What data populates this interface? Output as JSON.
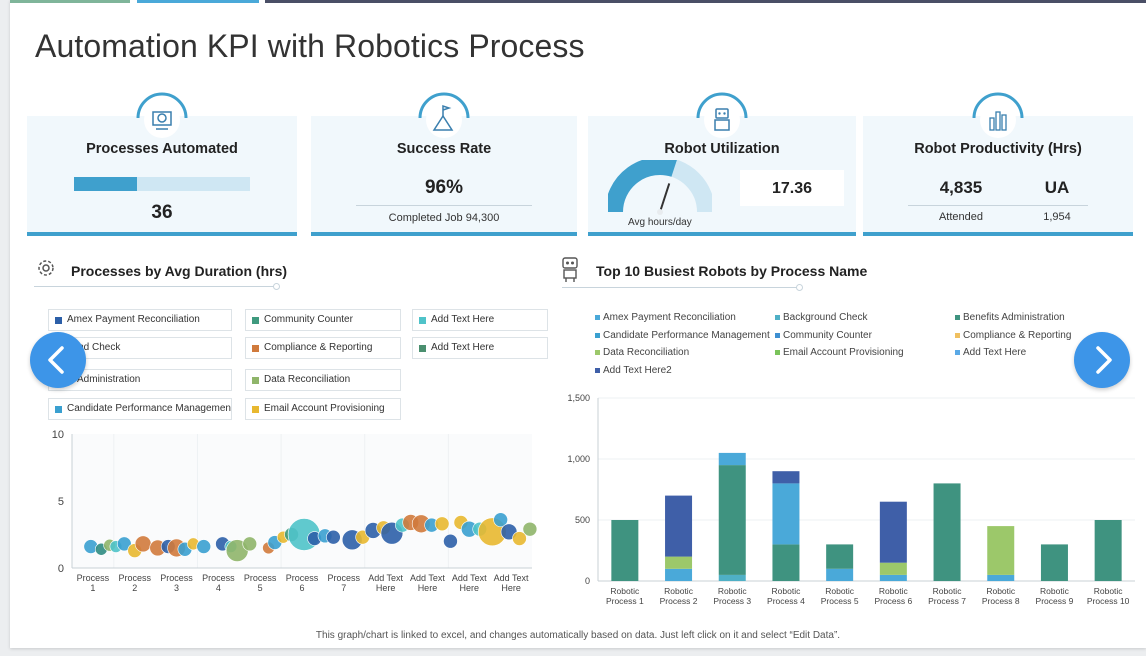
{
  "slide_title": "Automation KPI with Robotics Process",
  "kpis": {
    "processes_automated": {
      "title": "Processes Automated",
      "value": "36",
      "progress": 0.36
    },
    "success_rate": {
      "title": "Success Rate",
      "value": "96%",
      "caption": "Completed Job 94,300"
    },
    "robot_utilization": {
      "title": "Robot Utilization",
      "value": "17.36",
      "gauge_label": "Avg hours/day",
      "gauge_fraction": 0.6
    },
    "robot_productivity": {
      "title": "Robot Productivity (Hrs)",
      "value_left": "4,835",
      "value_right": "UA",
      "label_left": "Attended",
      "label_right": "1,954"
    }
  },
  "left_panel": {
    "title": "Processes by Avg Duration (hrs)",
    "legend": [
      {
        "label": "Amex Payment Reconciliation",
        "color": "#2c5fa8"
      },
      {
        "label": "Community Counter",
        "color": "#3f9a7e"
      },
      {
        "label": "Add Text Here",
        "color": "#4fc3c9"
      },
      {
        "label": "ound Check",
        "color": "#3f9a7e"
      },
      {
        "label": "Compliance & Reporting",
        "color": "#d07a3c"
      },
      {
        "label": "Add Text Here",
        "color": "#4a8f6f"
      },
      {
        "label": "ts Administration",
        "color": "#2f8c82"
      },
      {
        "label": "Data Reconciliation",
        "color": "#8fb56a"
      },
      {
        "label": "Candidate Performance Management",
        "color": "#3aa0d0"
      },
      {
        "label": "Email Account Provisioning",
        "color": "#e8b830"
      }
    ]
  },
  "right_panel": {
    "title": "Top 10 Busiest Robots by Process Name",
    "legend": [
      {
        "label": "Amex Payment Reconciliation",
        "color": "#4aa9d9"
      },
      {
        "label": "Background Check",
        "color": "#4fb0c6"
      },
      {
        "label": "Benefits Administration",
        "color": "#3f9380"
      },
      {
        "label": "Candidate Performance Management",
        "color": "#3aa0d0"
      },
      {
        "label": "Community Counter",
        "color": "#3d8fd1"
      },
      {
        "label": "Compliance & Reporting",
        "color": "#f0c060"
      },
      {
        "label": "Data Reconciliation",
        "color": "#9cc86a"
      },
      {
        "label": "Email Account Provisioning",
        "color": "#7ac35a"
      },
      {
        "label": "Add Text Here",
        "color": "#5aa9e6"
      },
      {
        "label": "Add Text Here2",
        "color": "#3f5fa8"
      }
    ]
  },
  "chart_data": [
    {
      "type": "scatter",
      "ylim": [
        0,
        10
      ],
      "yticks": [
        "0",
        "5",
        "10"
      ],
      "categories": [
        [
          "Process",
          "1"
        ],
        [
          "Process",
          "2"
        ],
        [
          "Process",
          "3"
        ],
        [
          "Process",
          "4"
        ],
        [
          "Process",
          "5"
        ],
        [
          "Process",
          "6"
        ],
        [
          "Process",
          "7"
        ],
        [
          "Add Text",
          "Here"
        ],
        [
          "Add Text",
          "Here"
        ],
        [
          "Add Text",
          "Here"
        ],
        [
          "Add Text",
          "Here"
        ]
      ],
      "points": [
        {
          "x": 0.95,
          "y": 1.6,
          "s": 7,
          "c": "#3aa0d0"
        },
        {
          "x": 1.2,
          "y": 1.4,
          "s": 6,
          "c": "#2f8c82"
        },
        {
          "x": 1.4,
          "y": 1.7,
          "s": 6,
          "c": "#8fb56a"
        },
        {
          "x": 1.55,
          "y": 1.6,
          "s": 6,
          "c": "#4fc3c9"
        },
        {
          "x": 1.75,
          "y": 1.8,
          "s": 7,
          "c": "#3aa0d0"
        },
        {
          "x": 2.0,
          "y": 1.3,
          "s": 7,
          "c": "#e8b830"
        },
        {
          "x": 2.2,
          "y": 1.8,
          "s": 8,
          "c": "#d07a3c"
        },
        {
          "x": 2.55,
          "y": 1.5,
          "s": 8,
          "c": "#d07a3c"
        },
        {
          "x": 2.8,
          "y": 1.6,
          "s": 7,
          "c": "#2c5fa8"
        },
        {
          "x": 3.0,
          "y": 1.5,
          "s": 9,
          "c": "#d07a3c"
        },
        {
          "x": 3.2,
          "y": 1.4,
          "s": 7,
          "c": "#3aa0d0"
        },
        {
          "x": 3.4,
          "y": 1.8,
          "s": 6,
          "c": "#e8b830"
        },
        {
          "x": 3.65,
          "y": 1.6,
          "s": 7,
          "c": "#3aa0d0"
        },
        {
          "x": 4.1,
          "y": 1.8,
          "s": 7,
          "c": "#2c5fa8"
        },
        {
          "x": 4.3,
          "y": 1.6,
          "s": 6,
          "c": "#4fc3c9"
        },
        {
          "x": 4.45,
          "y": 1.3,
          "s": 11,
          "c": "#8fb56a"
        },
        {
          "x": 4.75,
          "y": 1.8,
          "s": 7,
          "c": "#8fb56a"
        },
        {
          "x": 5.2,
          "y": 1.5,
          "s": 6,
          "c": "#d07a3c"
        },
        {
          "x": 5.35,
          "y": 1.9,
          "s": 7,
          "c": "#3aa0d0"
        },
        {
          "x": 5.55,
          "y": 2.3,
          "s": 6,
          "c": "#e8b830"
        },
        {
          "x": 5.75,
          "y": 2.5,
          "s": 7,
          "c": "#3f9a7e"
        },
        {
          "x": 6.05,
          "y": 2.5,
          "s": 16,
          "c": "#4fc3c9"
        },
        {
          "x": 6.3,
          "y": 2.2,
          "s": 7,
          "c": "#2c5fa8"
        },
        {
          "x": 6.55,
          "y": 2.4,
          "s": 7,
          "c": "#3aa0d0"
        },
        {
          "x": 6.75,
          "y": 2.3,
          "s": 7,
          "c": "#2c5fa8"
        },
        {
          "x": 7.2,
          "y": 2.1,
          "s": 10,
          "c": "#2c5fa8"
        },
        {
          "x": 7.45,
          "y": 2.3,
          "s": 7,
          "c": "#e8b830"
        },
        {
          "x": 7.7,
          "y": 2.8,
          "s": 8,
          "c": "#2c5fa8"
        },
        {
          "x": 7.95,
          "y": 3.0,
          "s": 7,
          "c": "#e8b830"
        },
        {
          "x": 8.15,
          "y": 2.6,
          "s": 11,
          "c": "#2c5fa8"
        },
        {
          "x": 8.4,
          "y": 3.2,
          "s": 7,
          "c": "#4fc3c9"
        },
        {
          "x": 8.6,
          "y": 3.4,
          "s": 8,
          "c": "#d07a3c"
        },
        {
          "x": 8.85,
          "y": 3.3,
          "s": 9,
          "c": "#d07a3c"
        },
        {
          "x": 9.1,
          "y": 3.2,
          "s": 7,
          "c": "#3aa0d0"
        },
        {
          "x": 9.35,
          "y": 3.3,
          "s": 7,
          "c": "#e8b830"
        },
        {
          "x": 9.55,
          "y": 2.0,
          "s": 7,
          "c": "#2c5fa8"
        },
        {
          "x": 9.8,
          "y": 3.4,
          "s": 7,
          "c": "#e8b830"
        },
        {
          "x": 10.0,
          "y": 2.9,
          "s": 8,
          "c": "#3aa0d0"
        },
        {
          "x": 10.25,
          "y": 2.9,
          "s": 7,
          "c": "#4fc3c9"
        },
        {
          "x": 10.55,
          "y": 2.7,
          "s": 14,
          "c": "#e8b830"
        },
        {
          "x": 10.75,
          "y": 3.6,
          "s": 7,
          "c": "#3aa0d0"
        },
        {
          "x": 10.95,
          "y": 2.7,
          "s": 8,
          "c": "#2c5fa8"
        },
        {
          "x": 11.2,
          "y": 2.2,
          "s": 7,
          "c": "#e8b830"
        },
        {
          "x": 11.45,
          "y": 2.9,
          "s": 7,
          "c": "#8fb56a"
        }
      ]
    },
    {
      "type": "bar",
      "stacked": true,
      "ylim": [
        0,
        1500
      ],
      "yticks": [
        {
          "value": 0,
          "label": "0"
        },
        {
          "value": 500,
          "label": "500"
        },
        {
          "value": 1000,
          "label": "1,000"
        },
        {
          "value": 1500,
          "label": "1,500"
        }
      ],
      "categories": [
        [
          "Robotic",
          "Process 1"
        ],
        [
          "Robotic",
          "Process 2"
        ],
        [
          "Robotic",
          "Process 3"
        ],
        [
          "Robotic",
          "Process 4"
        ],
        [
          "Robotic",
          "Process 5"
        ],
        [
          "Robotic",
          "Process 6"
        ],
        [
          "Robotic",
          "Process 7"
        ],
        [
          "Robotic",
          "Process 8"
        ],
        [
          "Robotic",
          "Process 9"
        ],
        [
          "Robotic",
          "Process 10"
        ]
      ],
      "stacks": [
        [
          {
            "v": 500,
            "c": "#3f9380"
          }
        ],
        [
          {
            "v": 100,
            "c": "#4aa9d9"
          },
          {
            "v": 100,
            "c": "#9cc86a"
          },
          {
            "v": 500,
            "c": "#3f5fa8"
          }
        ],
        [
          {
            "v": 50,
            "c": "#4fb0c6"
          },
          {
            "v": 900,
            "c": "#3f9380"
          },
          {
            "v": 100,
            "c": "#4aa9d9"
          }
        ],
        [
          {
            "v": 300,
            "c": "#3f9380"
          },
          {
            "v": 500,
            "c": "#4aa9d9"
          },
          {
            "v": 100,
            "c": "#3f5fa8"
          }
        ],
        [
          {
            "v": 100,
            "c": "#4aa9d9"
          },
          {
            "v": 200,
            "c": "#3f9380"
          }
        ],
        [
          {
            "v": 50,
            "c": "#4aa9d9"
          },
          {
            "v": 100,
            "c": "#9cc86a"
          },
          {
            "v": 500,
            "c": "#3f5fa8"
          }
        ],
        [
          {
            "v": 800,
            "c": "#3f9380"
          }
        ],
        [
          {
            "v": 50,
            "c": "#4aa9d9"
          },
          {
            "v": 400,
            "c": "#9cc86a"
          }
        ],
        [
          {
            "v": 300,
            "c": "#3f9380"
          }
        ],
        [
          {
            "v": 500,
            "c": "#3f9380"
          }
        ]
      ]
    }
  ],
  "footnote": "This graph/chart is linked to excel, and changes automatically based on data. Just left click on it and select “Edit Data”."
}
